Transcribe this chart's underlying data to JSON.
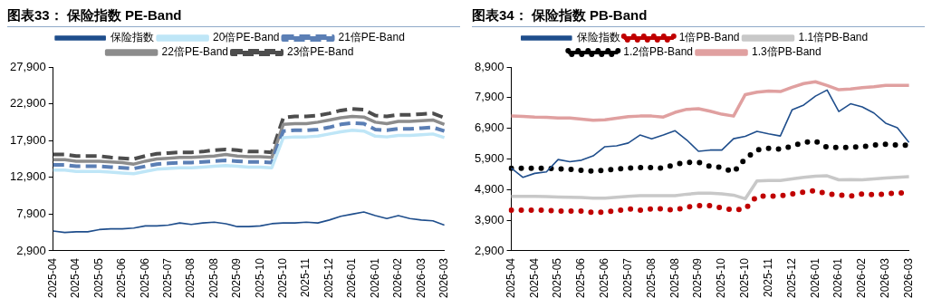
{
  "chart_data": [
    {
      "type": "line",
      "title": "图表33： 保险指数 PE-Band",
      "legend": "top",
      "grid": false,
      "categories": [
        "2025-04",
        null,
        "2025-04",
        null,
        "2025-05",
        null,
        "2025-06",
        null,
        "2025-06",
        null,
        "2025-07",
        null,
        "2025-08",
        null,
        "2025-08",
        null,
        "2025-09",
        null,
        "2025-10",
        null,
        "2025-10",
        null,
        "2025-11",
        null,
        "2025-12",
        null,
        "2026-01",
        null,
        "2026-01",
        null,
        "2026-02",
        null,
        "2026-03",
        null,
        "2026-03"
      ],
      "ylim": [
        2900,
        27900
      ],
      "yticks": [
        {
          "value": 2900,
          "label": "2,900"
        },
        {
          "value": 7900,
          "label": "7,900"
        },
        {
          "value": 12900,
          "label": "12,900"
        },
        {
          "value": 17900,
          "label": "17,900"
        },
        {
          "value": 22900,
          "label": "22,900"
        },
        {
          "value": 27900,
          "label": "27,900"
        }
      ],
      "series": [
        {
          "name": "保险指数",
          "color": "#1f4e8c",
          "line_style": "solid",
          "values": [
            5600,
            5400,
            5500,
            5500,
            5800,
            5900,
            5900,
            6000,
            6300,
            6300,
            6400,
            6700,
            6500,
            6700,
            6800,
            6600,
            6200,
            6200,
            6300,
            6600,
            6700,
            6700,
            6800,
            6700,
            7100,
            7600,
            7900,
            8200,
            7700,
            7300,
            7700,
            7300,
            7100,
            7000,
            6400
          ]
        },
        {
          "name": "20倍PE-Band",
          "color": "#bfe6f7",
          "line_style": "solid",
          "values": [
            13900,
            13900,
            13700,
            13700,
            13700,
            13600,
            13500,
            13400,
            13700,
            14000,
            14100,
            14200,
            14200,
            14300,
            14400,
            14500,
            14400,
            14300,
            14300,
            14200,
            18300,
            18400,
            18400,
            18500,
            18800,
            19100,
            19300,
            19200,
            18500,
            18400,
            18600,
            18600,
            18700,
            18800,
            18300
          ]
        },
        {
          "name": "21倍PE-Band",
          "color": "#5b7fb5",
          "line_style": "dashed",
          "values": [
            14600,
            14600,
            14400,
            14400,
            14400,
            14300,
            14200,
            14100,
            14400,
            14700,
            14800,
            14900,
            14900,
            15000,
            15100,
            15200,
            15100,
            15000,
            15000,
            14900,
            19200,
            19300,
            19300,
            19400,
            19700,
            20100,
            20300,
            20200,
            19400,
            19300,
            19500,
            19500,
            19600,
            19700,
            19200
          ]
        },
        {
          "name": "22倍PE-Band",
          "color": "#8c8c8c",
          "line_style": "solid",
          "values": [
            15300,
            15300,
            15100,
            15100,
            15100,
            15000,
            14900,
            14700,
            15100,
            15400,
            15500,
            15600,
            15600,
            15700,
            15800,
            16000,
            15800,
            15700,
            15700,
            15600,
            20100,
            20200,
            20200,
            20400,
            20700,
            21000,
            21200,
            21100,
            20400,
            20200,
            20500,
            20500,
            20600,
            20700,
            20100
          ]
        },
        {
          "name": "23倍PE-Band",
          "color": "#4d4d4d",
          "line_style": "dashed",
          "values": [
            16000,
            16000,
            15800,
            15800,
            15800,
            15600,
            15500,
            15400,
            15800,
            16100,
            16200,
            16300,
            16300,
            16400,
            16600,
            16700,
            16600,
            16400,
            16400,
            16300,
            21000,
            21200,
            21200,
            21300,
            21600,
            22000,
            22200,
            22100,
            21300,
            21200,
            21400,
            21400,
            21500,
            21600,
            21000
          ]
        }
      ]
    },
    {
      "type": "line",
      "title": "图表34： 保险指数 PB-Band",
      "legend": "top",
      "grid": false,
      "categories": [
        "2025-04",
        null,
        "2025-04",
        null,
        "2025-05",
        null,
        "2025-06",
        null,
        "2025-06",
        null,
        "2025-07",
        null,
        "2025-08",
        null,
        "2025-08",
        null,
        "2025-09",
        null,
        "2025-10",
        null,
        "2025-10",
        null,
        "2025-11",
        null,
        "2025-12",
        null,
        "2026-01",
        null,
        "2026-01",
        null,
        "2026-02",
        null,
        "2026-03",
        null,
        "2026-03"
      ],
      "ylim": [
        2900,
        8900
      ],
      "yticks": [
        {
          "value": 2900,
          "label": "2,900"
        },
        {
          "value": 3900,
          "label": "3,900"
        },
        {
          "value": 4900,
          "label": "4,900"
        },
        {
          "value": 5900,
          "label": "5,900"
        },
        {
          "value": 6900,
          "label": "6,900"
        },
        {
          "value": 7900,
          "label": "7,900"
        },
        {
          "value": 8900,
          "label": "8,900"
        }
      ],
      "series": [
        {
          "name": "保险指数",
          "color": "#1f4e8c",
          "line_style": "solid",
          "values": [
            5600,
            5300,
            5430,
            5480,
            5880,
            5810,
            5860,
            6000,
            6300,
            6330,
            6420,
            6680,
            6560,
            6680,
            6820,
            6520,
            6150,
            6190,
            6190,
            6560,
            6640,
            6800,
            6720,
            6650,
            7500,
            7660,
            7950,
            8150,
            7450,
            7700,
            7600,
            7400,
            7070,
            6920,
            6440
          ]
        },
        {
          "name": "1倍PB-Band",
          "color": "#c00000",
          "line_style": "dotted",
          "values": [
            4230,
            4230,
            4230,
            4230,
            4200,
            4200,
            4200,
            4150,
            4170,
            4210,
            4270,
            4230,
            4270,
            4270,
            4230,
            4330,
            4380,
            4380,
            4300,
            4230,
            4270,
            4690,
            4690,
            4690,
            4760,
            4820,
            4870,
            4760,
            4730,
            4690,
            4760,
            4730,
            4760,
            4790,
            4790
          ]
        },
        {
          "name": "1.1倍PB-Band",
          "color": "#c8c8c8",
          "line_style": "solid",
          "values": [
            4680,
            4680,
            4680,
            4670,
            4660,
            4650,
            4640,
            4620,
            4620,
            4650,
            4680,
            4700,
            4700,
            4700,
            4700,
            4750,
            4780,
            4780,
            4760,
            4720,
            4600,
            5180,
            5200,
            5200,
            5250,
            5300,
            5340,
            5350,
            5220,
            5230,
            5220,
            5250,
            5280,
            5300,
            5320
          ]
        },
        {
          "name": "1.2倍PB-Band",
          "color": "#000000",
          "line_style": "dotted",
          "values": [
            5600,
            5600,
            5600,
            5600,
            5580,
            5560,
            5530,
            5500,
            5530,
            5570,
            5600,
            5620,
            5620,
            5600,
            5720,
            5790,
            5790,
            5660,
            5620,
            5470,
            5910,
            6190,
            6250,
            6220,
            6320,
            6440,
            6480,
            6280,
            6280,
            6280,
            6300,
            6350,
            6380,
            6350,
            6350
          ]
        },
        {
          "name": "1.3倍PB-Band",
          "color": "#e0a0a0",
          "line_style": "solid",
          "values": [
            7300,
            7290,
            7270,
            7260,
            7240,
            7240,
            7200,
            7160,
            7180,
            7230,
            7280,
            7300,
            7300,
            7270,
            7420,
            7520,
            7540,
            7460,
            7360,
            7300,
            8000,
            8080,
            8120,
            8100,
            8240,
            8360,
            8420,
            8300,
            8160,
            8180,
            8230,
            8260,
            8300,
            8300,
            8300
          ]
        }
      ]
    }
  ]
}
